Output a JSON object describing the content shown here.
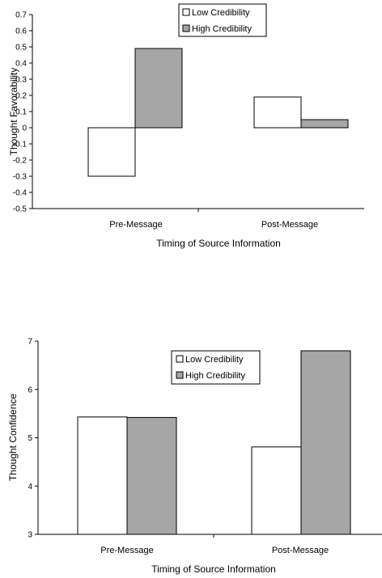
{
  "colors": {
    "low": "#ffffff",
    "high": "#a6a6a6",
    "stroke": "#000000"
  },
  "chart_data": [
    {
      "type": "bar",
      "categories": [
        "Pre-Message",
        "Post-Message"
      ],
      "series": [
        {
          "name": "Low Credibility",
          "values": [
            -0.3,
            0.19
          ]
        },
        {
          "name": "High Credibility",
          "values": [
            0.49,
            0.05
          ]
        }
      ],
      "xlabel": "Timing of Source Information",
      "ylabel": "Thought Favorability",
      "ylim": [
        -0.5,
        0.7
      ],
      "yticks": [
        "0.7",
        "0.6",
        "0.5",
        "0.4",
        "0.3",
        "0.2",
        "0.1",
        "0",
        "-0.1",
        "-0.2",
        "-0.3",
        "-0.4",
        "-0.5"
      ],
      "grid": false,
      "legend_position": "top-center"
    },
    {
      "type": "bar",
      "categories": [
        "Pre-Message",
        "Post-Message"
      ],
      "series": [
        {
          "name": "Low Credibility",
          "values": [
            5.43,
            4.81
          ]
        },
        {
          "name": "High Credibility",
          "values": [
            5.42,
            6.8
          ]
        }
      ],
      "xlabel": "Timing of Source Information",
      "ylabel": "Thought Confidence",
      "ylim": [
        3,
        7
      ],
      "yticks": [
        "7",
        "6",
        "5",
        "4",
        "3"
      ],
      "grid": false,
      "legend_position": "top-right"
    }
  ]
}
